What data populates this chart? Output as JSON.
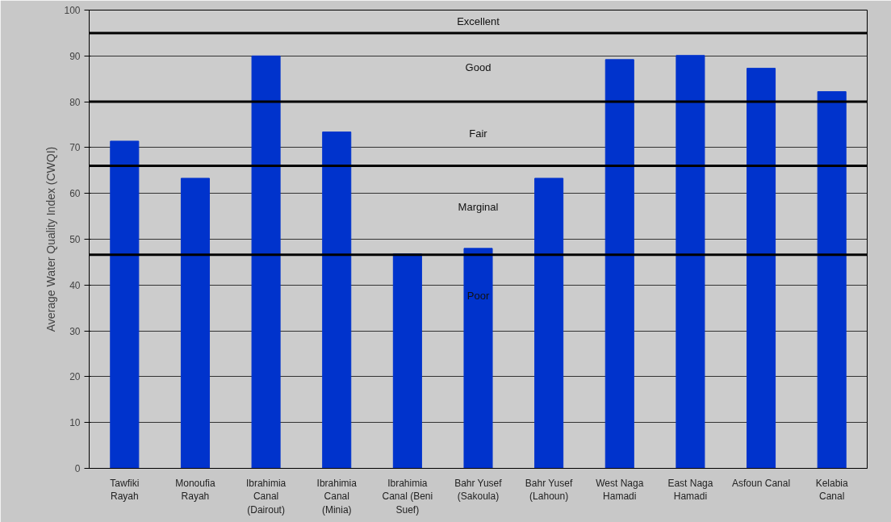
{
  "chart_data": {
    "type": "bar",
    "ylabel": "Average Water Quality Index (CWQI)",
    "categories": [
      "Tawfiki Rayah",
      "Monoufia Rayah",
      "Ibrahimia Canal (Dairout)",
      "Ibrahimia Canal (Minia)",
      "Ibrahimia Canal (Beni Suef)",
      "Bahr Yusef (Sakoula)",
      "Bahr Yusef (Lahoun)",
      "West Naga Hamadi",
      "East Naga Hamadi",
      "Asfoun Canal",
      "Kelabia Canal"
    ],
    "values": [
      71.4,
      63.3,
      90,
      73.4,
      46.8,
      48,
      63.3,
      89.2,
      90.1,
      87.3,
      82.2
    ],
    "color": "#0033cc",
    "ylim": [
      0,
      100
    ],
    "yticks": [
      0,
      10,
      20,
      30,
      40,
      50,
      60,
      70,
      80,
      90,
      100
    ],
    "grid": "y",
    "ref_lines": [
      {
        "axis": "y",
        "value": 95,
        "color": "#000000"
      },
      {
        "axis": "y",
        "value": 80,
        "color": "#000000"
      },
      {
        "axis": "y",
        "value": 66,
        "color": "#000000"
      },
      {
        "axis": "y",
        "value": 46.6,
        "color": "#000000"
      }
    ],
    "annotations": [
      "Excellent",
      "Good",
      "Fair",
      "Marginal",
      "Poor"
    ]
  }
}
